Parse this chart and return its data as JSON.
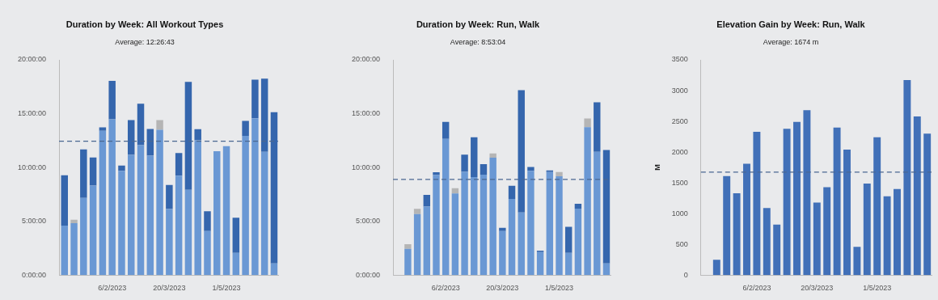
{
  "chart_data": [
    {
      "type": "bar",
      "title": "Duration by Week: All Workout Types",
      "stacked": true,
      "x": [
        "2023-01-02",
        "2023-01-09",
        "2023-01-16",
        "2023-01-23",
        "2023-01-30",
        "2023-02-06",
        "2023-02-13",
        "2023-02-20",
        "2023-02-27",
        "2023-03-06",
        "2023-03-13",
        "2023-03-20",
        "2023-03-27",
        "2023-04-03",
        "2023-04-10",
        "2023-04-17",
        "2023-04-24",
        "2023-05-01",
        "2023-05-08",
        "2023-05-15",
        "2023-05-22",
        "2023-05-29",
        "2023-06-05"
      ],
      "series": [
        {
          "color": "#6a98d4",
          "values": [
            4.59,
            4.83,
            7.17,
            8.32,
            13.4,
            14.48,
            9.69,
            11.17,
            12.07,
            11.09,
            13.5,
            6.13,
            9.23,
            7.93,
            12.52,
            4.1,
            11.51,
            11.98,
            2.06,
            12.93,
            14.58,
            11.46,
            1.08
          ]
        },
        {
          "color": "#3566ad",
          "values": [
            4.69,
            null,
            4.51,
            2.6,
            0.32,
            3.56,
            0.49,
            3.23,
            3.86,
            2.48,
            null,
            2.24,
            2.11,
            10.03,
            1.03,
            1.84,
            null,
            null,
            3.27,
            1.4,
            3.58,
            6.8,
            14.06
          ]
        },
        {
          "color": "#b5b5b5",
          "values": [
            null,
            0.32,
            null,
            null,
            null,
            null,
            null,
            null,
            null,
            null,
            0.9,
            null,
            null,
            null,
            null,
            null,
            null,
            null,
            null,
            null,
            null,
            null,
            null
          ]
        }
      ],
      "xlim": [
        "2022-12-29",
        "2023-06-08"
      ],
      "xticks": [
        {
          "value": "2023-02-06",
          "label": "6/2/2023"
        },
        {
          "value": "2023-03-20",
          "label": "20/3/2023"
        },
        {
          "value": "2023-05-01",
          "label": "1/5/2023"
        }
      ],
      "ylim": [
        0,
        20
      ],
      "yticks": [
        {
          "value": 0,
          "label": "0:00:00"
        },
        {
          "value": 5,
          "label": "5:00:00"
        },
        {
          "value": 10,
          "label": "10:00:00"
        },
        {
          "value": 15,
          "label": "15:00:00"
        },
        {
          "value": 20,
          "label": "20:00:00"
        }
      ],
      "subtitle": "Average: 12:26:43",
      "ref_lines": [
        {
          "axis": "y",
          "value": 12.445,
          "color": "#4a6791",
          "line_style": "dashed"
        }
      ]
    },
    {
      "type": "bar",
      "title": "Duration by Week: Run, Walk",
      "stacked": true,
      "x": [
        "2023-01-09",
        "2023-01-16",
        "2023-01-23",
        "2023-01-30",
        "2023-02-06",
        "2023-02-13",
        "2023-02-20",
        "2023-02-27",
        "2023-03-06",
        "2023-03-13",
        "2023-03-20",
        "2023-03-27",
        "2023-04-03",
        "2023-04-10",
        "2023-04-17",
        "2023-04-24",
        "2023-05-01",
        "2023-05-08",
        "2023-05-15",
        "2023-05-22",
        "2023-05-29",
        "2023-06-05"
      ],
      "series": [
        {
          "color": "#6a98d4",
          "values": [
            2.43,
            5.67,
            6.36,
            9.3,
            12.66,
            7.58,
            9.6,
            9.1,
            9.33,
            10.9,
            4.1,
            7.07,
            5.82,
            9.69,
            2.13,
            9.57,
            9.18,
            2.06,
            6.18,
            13.74,
            11.46,
            1.08
          ]
        },
        {
          "color": "#3566ad",
          "values": [
            null,
            null,
            1.1,
            0.25,
            1.57,
            null,
            1.59,
            3.71,
            0.98,
            null,
            0.29,
            1.22,
            11.36,
            0.35,
            0.13,
            0.15,
            null,
            2.43,
            0.45,
            null,
            4.59,
            10.55
          ]
        },
        {
          "color": "#b5b5b5",
          "values": [
            0.44,
            0.49,
            null,
            null,
            null,
            0.49,
            null,
            null,
            null,
            0.41,
            null,
            null,
            null,
            null,
            null,
            null,
            0.39,
            null,
            null,
            0.81,
            null,
            null
          ]
        }
      ],
      "xlim": [
        "2022-12-29",
        "2023-06-08"
      ],
      "xticks": [
        {
          "value": "2023-02-06",
          "label": "6/2/2023"
        },
        {
          "value": "2023-03-20",
          "label": "20/3/2023"
        },
        {
          "value": "2023-05-01",
          "label": "1/5/2023"
        }
      ],
      "ylim": [
        0,
        20
      ],
      "yticks": [
        {
          "value": 0,
          "label": "0:00:00"
        },
        {
          "value": 5,
          "label": "5:00:00"
        },
        {
          "value": 10,
          "label": "10:00:00"
        },
        {
          "value": 15,
          "label": "15:00:00"
        },
        {
          "value": 20,
          "label": "20:00:00"
        }
      ],
      "subtitle": "Average: 8:53:04",
      "ref_lines": [
        {
          "axis": "y",
          "value": 8.884,
          "color": "#4a6791",
          "line_style": "dashed"
        }
      ]
    },
    {
      "type": "bar",
      "title": "Elevation Gain by Week: Run, Walk",
      "ylabel": "M",
      "x": [
        "2023-01-09",
        "2023-01-16",
        "2023-01-23",
        "2023-01-30",
        "2023-02-06",
        "2023-02-13",
        "2023-02-20",
        "2023-02-27",
        "2023-03-06",
        "2023-03-13",
        "2023-03-20",
        "2023-03-27",
        "2023-04-03",
        "2023-04-10",
        "2023-04-17",
        "2023-04-24",
        "2023-05-01",
        "2023-05-08",
        "2023-05-15",
        "2023-05-22",
        "2023-05-29",
        "2023-06-05"
      ],
      "series": [
        {
          "color": "#4170b8",
          "values": [
            250,
            1610,
            1330,
            1810,
            2330,
            1090,
            820,
            2380,
            2490,
            2680,
            1180,
            1430,
            2400,
            2040,
            460,
            1490,
            2240,
            1280,
            1400,
            3170,
            2580,
            2300
          ]
        }
      ],
      "xlim": [
        "2022-12-29",
        "2023-06-08"
      ],
      "xticks": [
        {
          "value": "2023-02-06",
          "label": "6/2/2023"
        },
        {
          "value": "2023-03-20",
          "label": "20/3/2023"
        },
        {
          "value": "2023-05-01",
          "label": "1/5/2023"
        }
      ],
      "ylim": [
        0,
        3500
      ],
      "yticks": [
        0,
        500,
        1000,
        1500,
        2000,
        2500,
        3000,
        3500
      ],
      "subtitle": "Average: 1674 m",
      "ref_lines": [
        {
          "axis": "y",
          "value": 1674,
          "color": "#4a6791",
          "line_style": "dashed"
        }
      ]
    }
  ]
}
